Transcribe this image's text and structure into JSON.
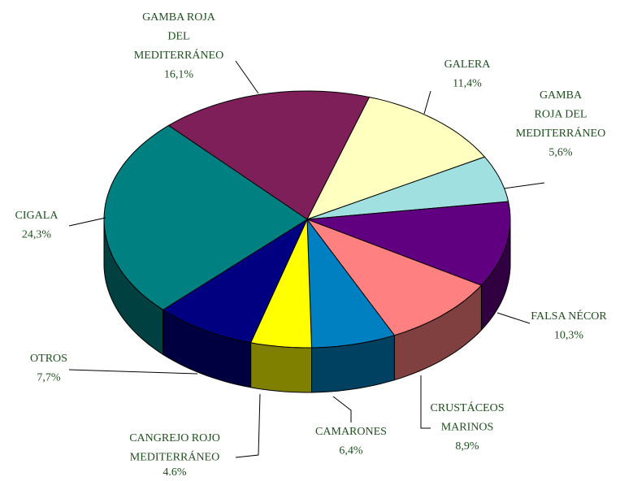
{
  "chart_data": {
    "type": "pie3d",
    "categories": [
      [
        "GAMBA ROJA",
        "DEL",
        "MEDITERRÁNEO"
      ],
      [
        "GALERA"
      ],
      [
        "GAMBA",
        "ROJA DEL",
        "MEDITERRÁNEO"
      ],
      [
        "FALSA NÉCOR"
      ],
      [
        "CRUSTÁCEOS",
        "MARINOS"
      ],
      [
        "CAMARONES"
      ],
      [
        "CANGREJO ROJO",
        "MEDITERRÁNEO"
      ],
      [
        "OTROS"
      ],
      [
        "CIGALA"
      ]
    ],
    "values": [
      16.1,
      11.4,
      5.6,
      10.3,
      8.9,
      6.4,
      4.6,
      7.7,
      24.3
    ],
    "value_labels": [
      "16,1%",
      "11,4%",
      "5,6%",
      "10,3%",
      "8,9%",
      "6,4%",
      "4.6%",
      "7,7%",
      "24,3%"
    ],
    "colors": [
      "#7f1f5a",
      "#ffffc0",
      "#a0e0e0",
      "#600080",
      "#ff8080",
      "#0080c0",
      "#ffff00",
      "#000080",
      "#008080"
    ]
  }
}
